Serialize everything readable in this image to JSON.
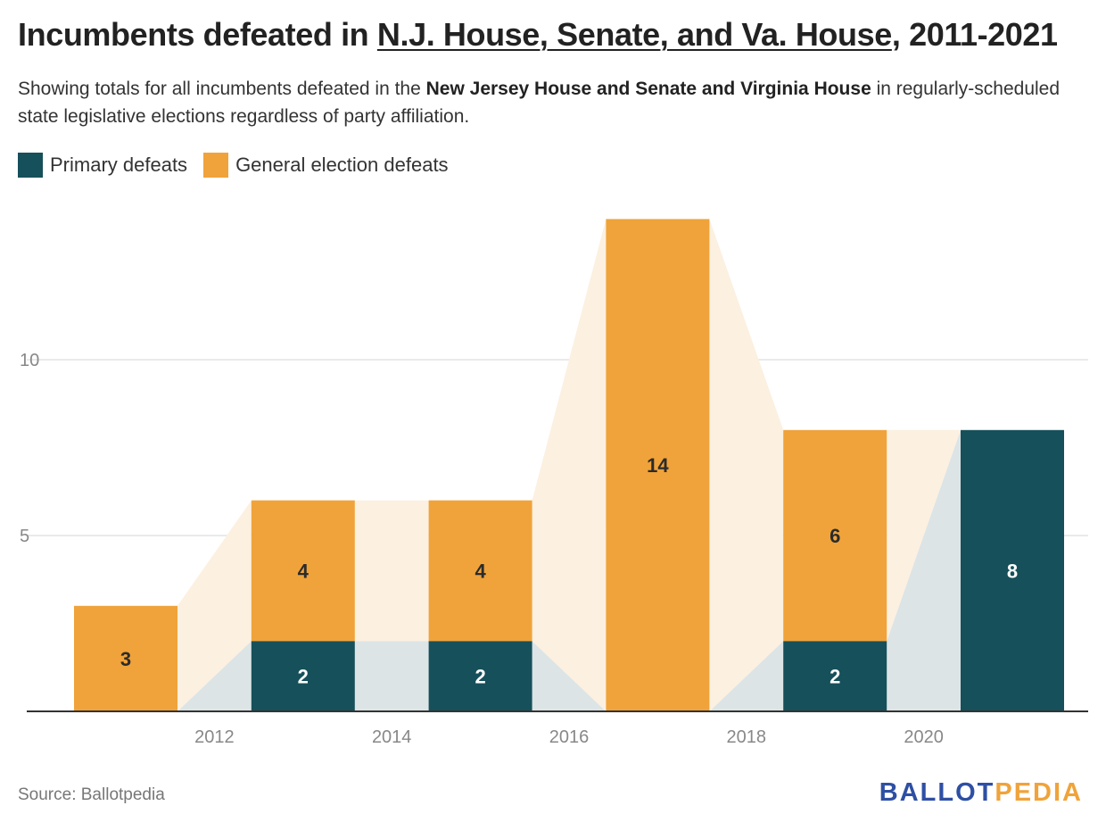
{
  "header": {
    "title_prefix": "Incumbents defeated in ",
    "title_link": "N.J. House, Senate, and Va. House",
    "title_suffix": ", 2011-2021",
    "subtitle_pre": "Showing totals for all incumbents defeated in the ",
    "subtitle_bold": "New Jersey House and Senate and Virginia House",
    "subtitle_post": " in regularly-scheduled state legislative elections regardless of party affiliation."
  },
  "legend": {
    "primary": "Primary defeats",
    "general": "General election defeats"
  },
  "colors": {
    "primary": "#16505a",
    "general": "#f0a33a",
    "primary_band": "#dce4e6",
    "general_band": "#fcf0e0",
    "grid": "#e3e3e3",
    "axis": "#333333",
    "tick_text": "#888888"
  },
  "chart_data": {
    "type": "bar",
    "stacked": true,
    "categories": [
      "2011",
      "2013",
      "2015",
      "2017",
      "2019",
      "2021"
    ],
    "series": [
      {
        "name": "Primary defeats",
        "values": [
          0,
          2,
          2,
          0,
          2,
          8
        ]
      },
      {
        "name": "General election defeats",
        "values": [
          3,
          4,
          4,
          14,
          6,
          0
        ]
      }
    ],
    "x_tick_labels": [
      "2012",
      "2014",
      "2016",
      "2018",
      "2020"
    ],
    "y_ticks": [
      5,
      10
    ],
    "ylim": [
      0,
      14
    ],
    "grid": true,
    "legend_position": "top-left"
  },
  "footer": {
    "source": "Source: Ballotpedia",
    "brand_part1": "BALLOT",
    "brand_part2": "PEDIA"
  }
}
